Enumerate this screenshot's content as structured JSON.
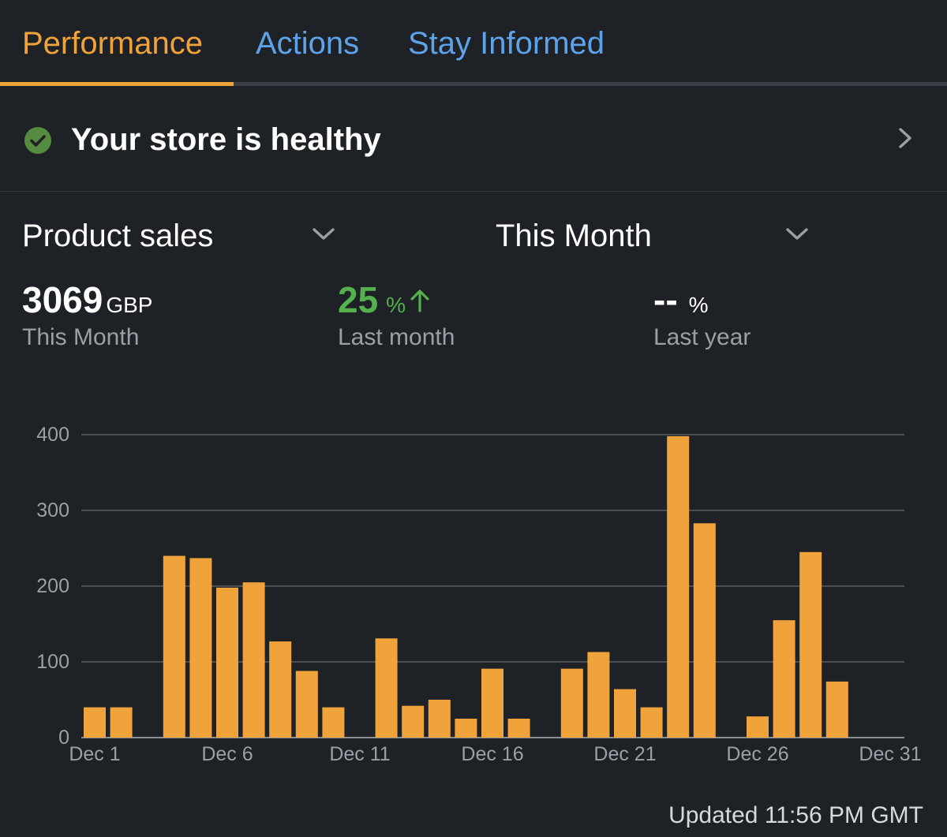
{
  "tabs": [
    {
      "label": "Performance",
      "active": true
    },
    {
      "label": "Actions",
      "active": false
    },
    {
      "label": "Stay Informed",
      "active": false
    }
  ],
  "health": {
    "text": "Your store is healthy",
    "icon": "check-circle-icon",
    "status_color": "#558b3e"
  },
  "metric_selector": {
    "label": "Product sales"
  },
  "period_selector": {
    "label": "This Month"
  },
  "stats": {
    "sales": {
      "value": "3069",
      "unit": "GBP",
      "caption": "This Month"
    },
    "last_month": {
      "value": "25",
      "unit": "%",
      "caption": "Last month",
      "trend": "up"
    },
    "last_year": {
      "value": "--",
      "unit": "%",
      "caption": "Last year"
    }
  },
  "colors": {
    "accent": "#f0a23b",
    "link": "#5da3e9",
    "positive": "#55b04e"
  },
  "chart_data": {
    "type": "bar",
    "title": "",
    "xlabel": "",
    "ylabel": "",
    "ylim": [
      0,
      400
    ],
    "yticks": [
      0,
      100,
      200,
      300,
      400
    ],
    "xtick_labels": [
      "Dec 1",
      "Dec 6",
      "Dec 11",
      "Dec 16",
      "Dec 21",
      "Dec 26",
      "Dec 31"
    ],
    "grid": true,
    "days": [
      1,
      2,
      3,
      4,
      5,
      6,
      7,
      8,
      9,
      10,
      11,
      12,
      13,
      14,
      15,
      16,
      17,
      18,
      19,
      20,
      21,
      22,
      23,
      24,
      25,
      26,
      27,
      28,
      29,
      30
    ],
    "values": [
      40,
      40,
      0,
      240,
      237,
      198,
      205,
      127,
      88,
      40,
      0,
      131,
      42,
      50,
      25,
      91,
      25,
      0,
      91,
      113,
      64,
      40,
      398,
      283,
      0,
      28,
      155,
      245,
      74,
      0
    ],
    "bar_color": "#f0a23b"
  },
  "footer": {
    "updated": "Updated 11:56 PM GMT"
  }
}
